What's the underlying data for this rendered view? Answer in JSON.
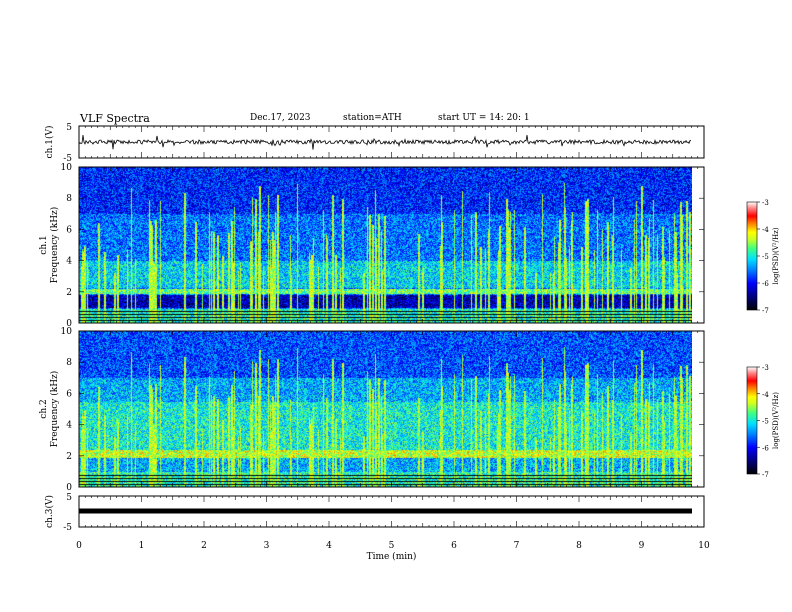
{
  "header": {
    "title": "VLF  Spectra",
    "date": "Dec.17, 2023",
    "station": "station=ATH",
    "start": "start  UT  =    14: 20: 1"
  },
  "chart_data": {
    "type": "heatmap",
    "xlabel": "Time  (min)",
    "xlim": [
      0,
      10
    ],
    "xticks": [
      "0",
      "1",
      "2",
      "3",
      "4",
      "5",
      "6",
      "7",
      "8",
      "9",
      "10"
    ],
    "panels": [
      {
        "name": "ch.1 waveform",
        "type": "line",
        "ylabel": "ch.1(V)",
        "ylim": [
          -5,
          5
        ],
        "yticks": [
          "5",
          "-5"
        ]
      },
      {
        "name": "ch.1 spectrogram",
        "type": "heatmap",
        "ylabel1": "ch.1",
        "ylabel2": "Frequency  (kHz)",
        "ylim": [
          0,
          10
        ],
        "yticks": [
          "0",
          "2",
          "4",
          "6",
          "8",
          "10"
        ],
        "features": {
          "background_band_khz": [
            1.0,
            1.8
          ],
          "enhanced_band_khz": [
            1.9,
            2.2
          ],
          "noise_floor_log_psd": -5.5
        }
      },
      {
        "name": "ch.2 spectrogram",
        "type": "heatmap",
        "ylabel1": "ch.2",
        "ylabel2": "Frequency  (kHz)",
        "ylim": [
          0,
          10
        ],
        "yticks": [
          "0",
          "2",
          "4",
          "6",
          "8",
          "10"
        ],
        "features": {
          "enhanced_band_khz": [
            1.9,
            2.3
          ],
          "noise_floor_log_psd": -5.2
        }
      },
      {
        "name": "ch.3 waveform",
        "type": "line",
        "ylabel": "ch.3(V)",
        "ylim": [
          -5,
          5
        ],
        "yticks": [
          "5",
          "-5"
        ],
        "value": 0
      }
    ],
    "colorbar": {
      "label": "log(PSD)(V²/Hz)",
      "range": [
        -7,
        -3
      ],
      "ticks": [
        "-3",
        "-4",
        "-5",
        "-6",
        "-7"
      ],
      "colors": [
        "#000000",
        "#00007a",
        "#0000ff",
        "#0080ff",
        "#00e0ff",
        "#20f0c0",
        "#80ff60",
        "#d0ff20",
        "#ffff00",
        "#ff8000",
        "#ff0000",
        "#ff8080",
        "#ffffff"
      ]
    }
  }
}
